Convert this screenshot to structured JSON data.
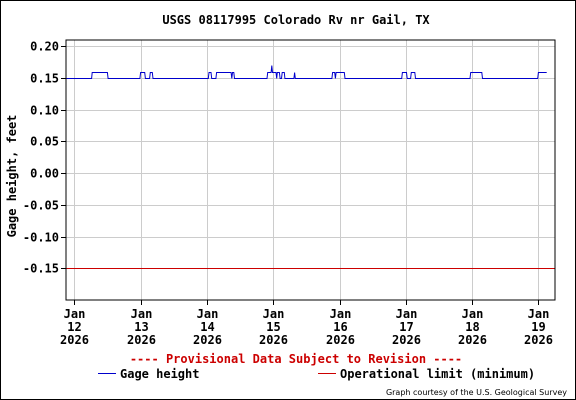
{
  "chart_data": {
    "type": "line",
    "title": "USGS 08117995 Colorado Rv nr Gail, TX",
    "ylabel": "Gage height, feet",
    "xlabel": "",
    "ylim": [
      -0.2,
      0.21
    ],
    "xlim": [
      "2026-01-11T21:00",
      "2026-01-19T06:00"
    ],
    "yticks": [
      "0.20",
      "0.15",
      "0.10",
      "0.05",
      "0.00",
      "-0.05",
      "-0.10",
      "-0.15"
    ],
    "ytick_values": [
      0.2,
      0.15,
      0.1,
      0.05,
      0.0,
      -0.05,
      -0.1,
      -0.15
    ],
    "xticks": [
      {
        "x": "2026-01-12T00:00",
        "label": [
          "Jan",
          "12",
          "2026"
        ]
      },
      {
        "x": "2026-01-13T00:00",
        "label": [
          "Jan",
          "13",
          "2026"
        ]
      },
      {
        "x": "2026-01-14T00:00",
        "label": [
          "Jan",
          "14",
          "2026"
        ]
      },
      {
        "x": "2026-01-15T00:00",
        "label": [
          "Jan",
          "15",
          "2026"
        ]
      },
      {
        "x": "2026-01-16T00:00",
        "label": [
          "Jan",
          "16",
          "2026"
        ]
      },
      {
        "x": "2026-01-17T00:00",
        "label": [
          "Jan",
          "17",
          "2026"
        ]
      },
      {
        "x": "2026-01-18T00:00",
        "label": [
          "Jan",
          "18",
          "2026"
        ]
      },
      {
        "x": "2026-01-19T00:00",
        "label": [
          "Jan",
          "19",
          "2026"
        ]
      }
    ],
    "grid": true,
    "series": [
      {
        "name": "Gage height",
        "color": "#0000cc",
        "points": [
          [
            "2026-01-11T21:00",
            0.15
          ],
          [
            "2026-01-12T06:15",
            0.15
          ],
          [
            "2026-01-12T06:30",
            0.16
          ],
          [
            "2026-01-12T12:00",
            0.16
          ],
          [
            "2026-01-12T12:15",
            0.15
          ],
          [
            "2026-01-12T23:45",
            0.15
          ],
          [
            "2026-01-13T00:00",
            0.16
          ],
          [
            "2026-01-13T01:30",
            0.16
          ],
          [
            "2026-01-13T01:45",
            0.15
          ],
          [
            "2026-01-13T03:15",
            0.15
          ],
          [
            "2026-01-13T03:30",
            0.16
          ],
          [
            "2026-01-13T04:15",
            0.16
          ],
          [
            "2026-01-13T04:30",
            0.15
          ],
          [
            "2026-01-14T00:30",
            0.15
          ],
          [
            "2026-01-14T00:45",
            0.16
          ],
          [
            "2026-01-14T01:30",
            0.16
          ],
          [
            "2026-01-14T01:45",
            0.15
          ],
          [
            "2026-01-14T03:15",
            0.15
          ],
          [
            "2026-01-14T03:30",
            0.16
          ],
          [
            "2026-01-14T08:45",
            0.16
          ],
          [
            "2026-01-14T09:00",
            0.15
          ],
          [
            "2026-01-14T09:15",
            0.16
          ],
          [
            "2026-01-14T09:45",
            0.16
          ],
          [
            "2026-01-14T10:00",
            0.15
          ],
          [
            "2026-01-14T21:45",
            0.15
          ],
          [
            "2026-01-14T22:00",
            0.16
          ],
          [
            "2026-01-14T23:15",
            0.16
          ],
          [
            "2026-01-14T23:30",
            0.17
          ],
          [
            "2026-01-14T23:45",
            0.16
          ],
          [
            "2026-01-15T01:00",
            0.16
          ],
          [
            "2026-01-15T01:15",
            0.15
          ],
          [
            "2026-01-15T01:30",
            0.16
          ],
          [
            "2026-01-15T02:15",
            0.16
          ],
          [
            "2026-01-15T02:30",
            0.15
          ],
          [
            "2026-01-15T03:00",
            0.15
          ],
          [
            "2026-01-15T03:15",
            0.16
          ],
          [
            "2026-01-15T04:00",
            0.16
          ],
          [
            "2026-01-15T04:15",
            0.15
          ],
          [
            "2026-01-15T07:30",
            0.15
          ],
          [
            "2026-01-15T07:45",
            0.16
          ],
          [
            "2026-01-15T08:00",
            0.15
          ],
          [
            "2026-01-15T21:15",
            0.15
          ],
          [
            "2026-01-15T21:30",
            0.16
          ],
          [
            "2026-01-15T22:15",
            0.16
          ],
          [
            "2026-01-15T22:30",
            0.15
          ],
          [
            "2026-01-15T22:45",
            0.16
          ],
          [
            "2026-01-16T01:45",
            0.16
          ],
          [
            "2026-01-16T02:00",
            0.15
          ],
          [
            "2026-01-16T22:30",
            0.15
          ],
          [
            "2026-01-16T22:45",
            0.16
          ],
          [
            "2026-01-17T00:15",
            0.16
          ],
          [
            "2026-01-17T00:30",
            0.15
          ],
          [
            "2026-01-17T01:45",
            0.15
          ],
          [
            "2026-01-17T02:00",
            0.16
          ],
          [
            "2026-01-17T03:15",
            0.16
          ],
          [
            "2026-01-17T03:30",
            0.15
          ],
          [
            "2026-01-17T23:15",
            0.15
          ],
          [
            "2026-01-17T23:30",
            0.16
          ],
          [
            "2026-01-18T03:30",
            0.16
          ],
          [
            "2026-01-18T03:45",
            0.15
          ],
          [
            "2026-01-18T23:45",
            0.15
          ],
          [
            "2026-01-19T00:00",
            0.16
          ],
          [
            "2026-01-19T03:00",
            0.16
          ]
        ]
      },
      {
        "name": "Operational limit (minimum)",
        "color": "#cc0000",
        "points": [
          [
            "2026-01-11T21:00",
            -0.15
          ],
          [
            "2026-01-19T06:00",
            -0.15
          ]
        ]
      }
    ],
    "notice": "---- Provisional Data Subject to Revision ----",
    "legend": [
      {
        "label": "Gage height",
        "color": "#0000cc"
      },
      {
        "label": "Operational limit (minimum)",
        "color": "#cc0000"
      }
    ],
    "legend_placement": "bottom",
    "courtesy": "Graph courtesy of the U.S. Geological Survey"
  }
}
